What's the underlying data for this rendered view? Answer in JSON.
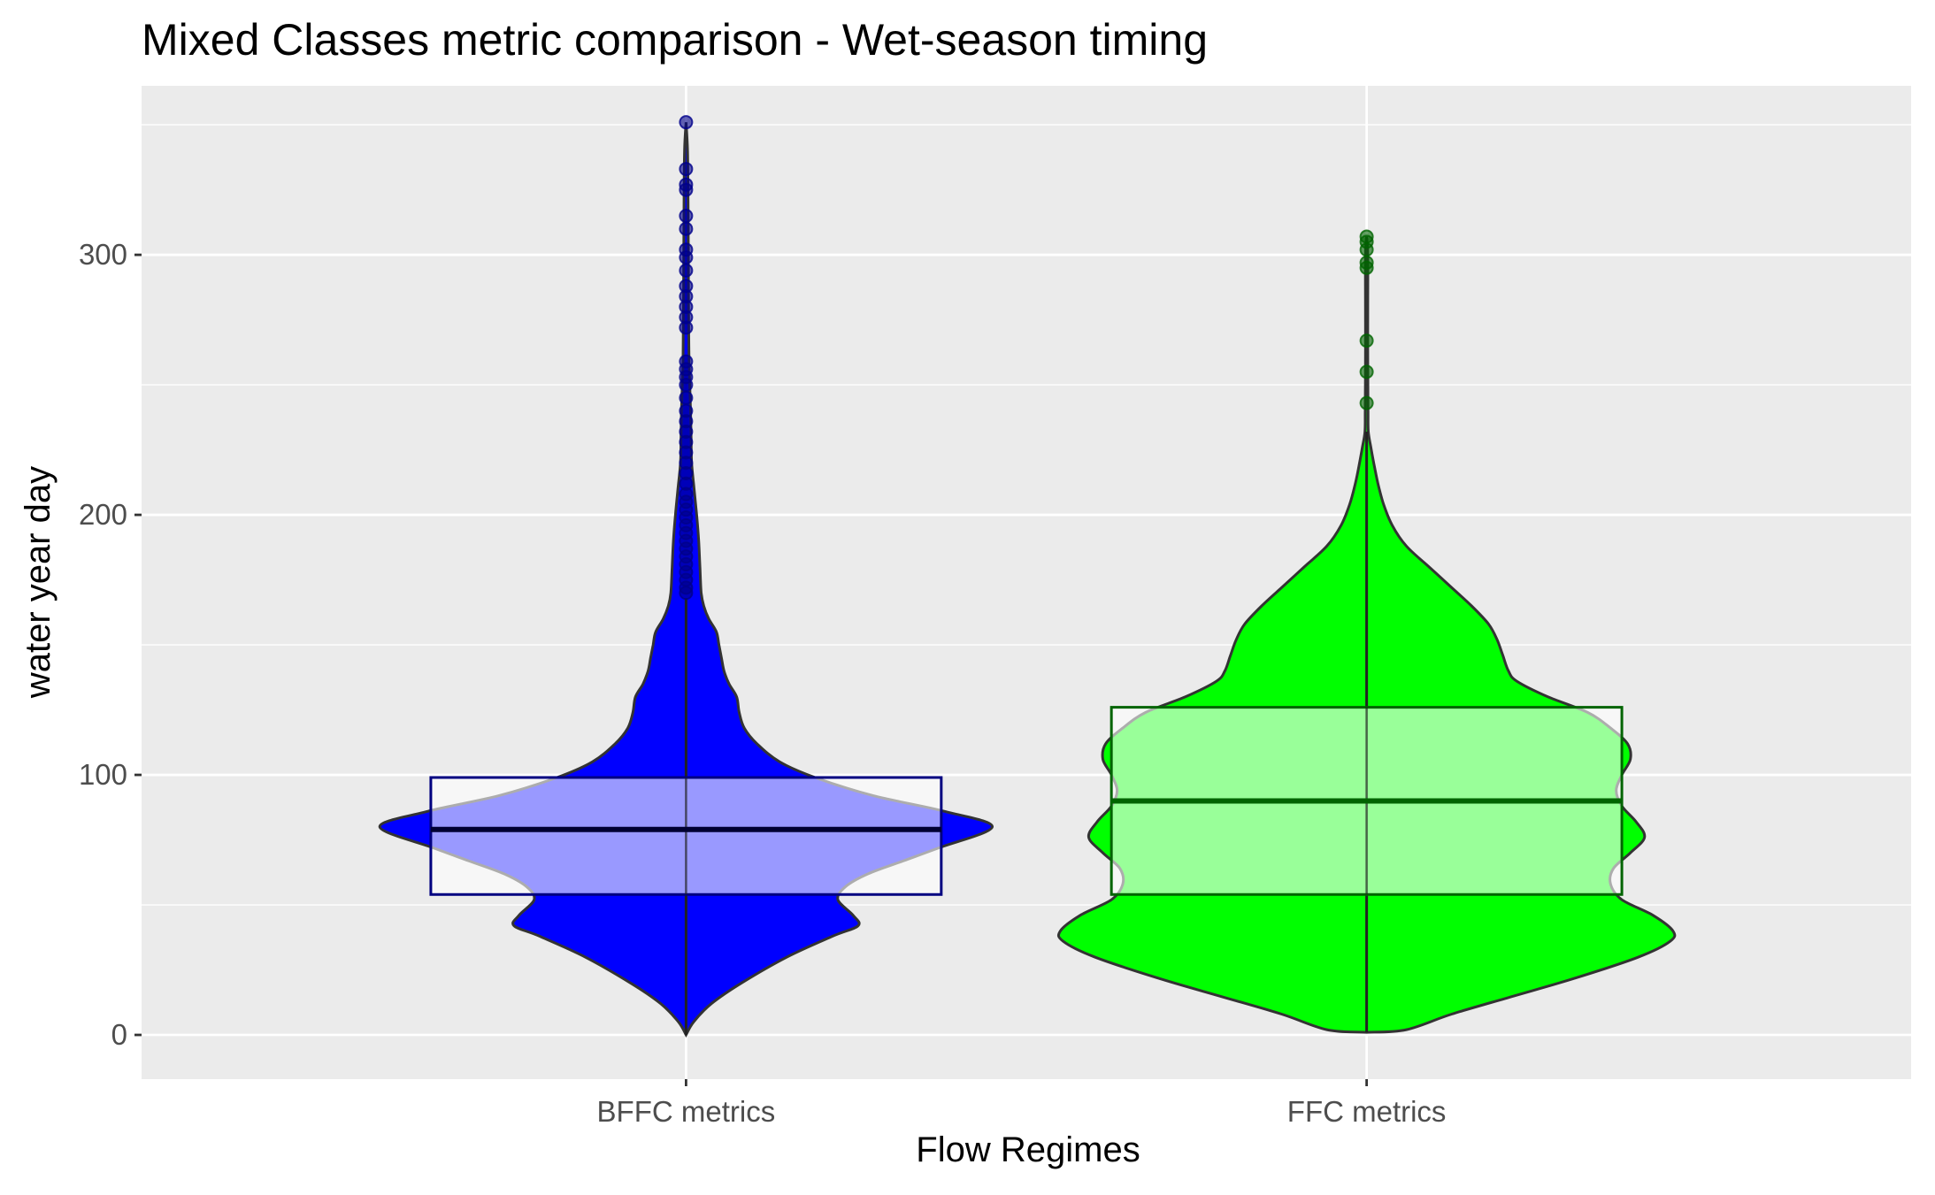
{
  "chart_data": {
    "type": "violin",
    "title": "Mixed Classes metric comparison - Wet-season timing",
    "xlabel": "Flow Regimes",
    "ylabel": "water year day",
    "categories": [
      "BFFC metrics",
      "FFC metrics"
    ],
    "ylim": [
      -17,
      365
    ],
    "yticks": [
      0,
      100,
      200,
      300
    ],
    "grid": true,
    "legend": "none",
    "series": [
      {
        "category": "BFFC metrics",
        "violin_fill": "#0000ff",
        "outlier_color": "#00008b",
        "box_fill": "#ffffff",
        "box_fill_opacity": 0.6,
        "box_stroke": "#000080",
        "median_color": "#000033",
        "box": {
          "whisker_low": 0,
          "q1": 54,
          "median": 79,
          "q3": 99,
          "whisker_high": 168
        },
        "outliers": [
          170,
          172,
          175,
          178,
          181,
          184,
          187,
          190,
          193,
          196,
          199,
          202,
          205,
          208,
          212,
          216,
          220,
          224,
          228,
          232,
          236,
          240,
          245,
          250,
          253,
          256,
          259,
          272,
          276,
          280,
          284,
          288,
          294,
          299,
          302,
          310,
          315,
          325,
          327,
          333,
          351
        ],
        "density": [
          [
            0,
            0.0
          ],
          [
            5,
            0.03
          ],
          [
            12,
            0.1
          ],
          [
            20,
            0.22
          ],
          [
            30,
            0.4
          ],
          [
            38,
            0.58
          ],
          [
            42,
            0.68
          ],
          [
            46,
            0.66
          ],
          [
            52,
            0.6
          ],
          [
            57,
            0.63
          ],
          [
            62,
            0.72
          ],
          [
            67,
            0.86
          ],
          [
            72,
            1.0
          ],
          [
            80,
            1.21
          ],
          [
            86,
            1.02
          ],
          [
            92,
            0.74
          ],
          [
            99,
            0.51
          ],
          [
            105,
            0.37
          ],
          [
            112,
            0.28
          ],
          [
            118,
            0.23
          ],
          [
            124,
            0.21
          ],
          [
            130,
            0.2
          ],
          [
            135,
            0.17
          ],
          [
            140,
            0.15
          ],
          [
            145,
            0.14
          ],
          [
            150,
            0.13
          ],
          [
            155,
            0.12
          ],
          [
            160,
            0.09
          ],
          [
            165,
            0.07
          ],
          [
            170,
            0.06
          ],
          [
            180,
            0.055
          ],
          [
            190,
            0.05
          ],
          [
            200,
            0.042
          ],
          [
            210,
            0.032
          ],
          [
            220,
            0.022
          ],
          [
            230,
            0.02
          ],
          [
            240,
            0.018
          ],
          [
            260,
            0.012
          ],
          [
            280,
            0.01
          ],
          [
            300,
            0.009
          ],
          [
            320,
            0.008
          ],
          [
            340,
            0.006
          ],
          [
            351,
            0.0
          ]
        ]
      },
      {
        "category": "FFC metrics",
        "violin_fill": "#00ff00",
        "outlier_color": "#006400",
        "box_fill": "#ffffff",
        "box_fill_opacity": 0.6,
        "box_stroke": "#006400",
        "median_color": "#006400",
        "box": {
          "whisker_low": 1,
          "q1": 54,
          "median": 90,
          "q3": 126,
          "whisker_high": 232
        },
        "outliers": [
          243,
          255,
          267,
          295,
          297,
          302,
          305,
          307
        ],
        "density": [
          [
            1,
            0.0
          ],
          [
            2,
            0.14
          ],
          [
            8,
            0.3
          ],
          [
            15,
            0.52
          ],
          [
            22,
            0.74
          ],
          [
            30,
            0.96
          ],
          [
            36,
            1.07
          ],
          [
            40,
            1.08
          ],
          [
            46,
            1.01
          ],
          [
            52,
            0.9
          ],
          [
            58,
            0.86
          ],
          [
            64,
            0.87
          ],
          [
            70,
            0.93
          ],
          [
            76,
            0.98
          ],
          [
            82,
            0.95
          ],
          [
            88,
            0.9
          ],
          [
            94,
            0.88
          ],
          [
            100,
            0.9
          ],
          [
            106,
            0.93
          ],
          [
            112,
            0.92
          ],
          [
            118,
            0.86
          ],
          [
            124,
            0.78
          ],
          [
            130,
            0.64
          ],
          [
            136,
            0.53
          ],
          [
            140,
            0.5
          ],
          [
            146,
            0.48
          ],
          [
            152,
            0.46
          ],
          [
            158,
            0.43
          ],
          [
            165,
            0.37
          ],
          [
            172,
            0.3
          ],
          [
            180,
            0.22
          ],
          [
            188,
            0.14
          ],
          [
            196,
            0.09
          ],
          [
            204,
            0.06
          ],
          [
            212,
            0.04
          ],
          [
            220,
            0.025
          ],
          [
            226,
            0.015
          ],
          [
            232,
            0.006
          ],
          [
            240,
            0.005
          ],
          [
            260,
            0.004
          ],
          [
            280,
            0.004
          ],
          [
            300,
            0.004
          ],
          [
            307,
            0.0
          ]
        ]
      }
    ]
  }
}
